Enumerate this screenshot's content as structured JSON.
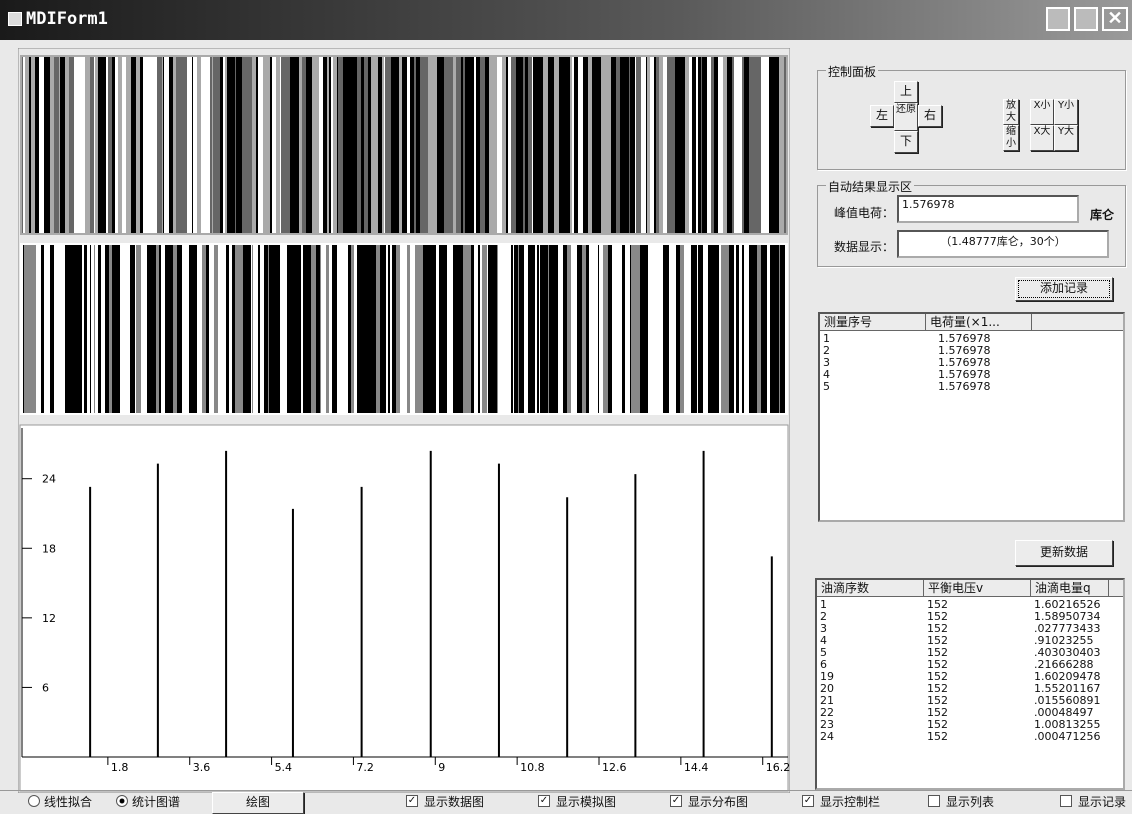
{
  "window": {
    "title": "MDIForm1"
  },
  "spectrum": {
    "xlim": [
      0,
      16.8
    ],
    "ylim": [
      0,
      28.2
    ],
    "xticks": [
      1.8,
      3.6,
      5.4,
      7.2,
      9,
      10.8,
      12.6,
      14.4,
      16.2
    ],
    "yticks": [
      6,
      12,
      18,
      24
    ],
    "peaks": {
      "x": [
        1.41,
        2.9,
        4.4,
        5.87,
        7.38,
        8.9,
        10.4,
        11.9,
        13.4,
        14.9,
        16.4
      ],
      "y": [
        23.3,
        25.3,
        26.4,
        21.4,
        23.3,
        26.4,
        25.3,
        22.4,
        24.4,
        26.4,
        17.3
      ]
    }
  },
  "control_panel": {
    "title": "控制面板",
    "up": "上",
    "left": "左",
    "restore": "还原",
    "right": "右",
    "down": "下",
    "zoom_in": "放大",
    "zoom_out": "缩小",
    "x_small": "X小",
    "y_small": "Y小",
    "x_large": "X大",
    "y_large": "Y大"
  },
  "results": {
    "title": "自动结果显示区",
    "peak_label": "峰值电荷：",
    "peak_value": "1.576978",
    "unit": "库仑",
    "data_label": "数据显示：",
    "data_value": "（1.48777库仑，30个）"
  },
  "add_button": "添加记录",
  "records": {
    "columns": [
      "测量序号",
      "电荷量(×1..."
    ],
    "rows": [
      [
        "1",
        "1.576978"
      ],
      [
        "2",
        "1.576978"
      ],
      [
        "3",
        "1.576978"
      ],
      [
        "4",
        "1.576978"
      ],
      [
        "5",
        "1.576978"
      ]
    ]
  },
  "update_button": "更新数据",
  "drops": {
    "columns": [
      "油滴序数",
      "平衡电压v",
      "油滴电量q"
    ],
    "rows": [
      [
        "1",
        "152",
        "1.60216526"
      ],
      [
        "2",
        "152",
        "1.58950734"
      ],
      [
        "3",
        "152",
        ".027773433"
      ],
      [
        "4",
        "152",
        ".91023255"
      ],
      [
        "5",
        "152",
        ".403030403"
      ],
      [
        "6",
        "152",
        ".21666288"
      ],
      [
        "19",
        "152",
        "1.60209478"
      ],
      [
        "20",
        "152",
        "1.55201167"
      ],
      [
        "21",
        "152",
        ".015560891"
      ],
      [
        "22",
        "152",
        ".00048497"
      ],
      [
        "23",
        "152",
        "1.00813255"
      ],
      [
        "24",
        "152",
        ".000471256"
      ]
    ]
  },
  "bottom": {
    "radios": [
      "线性拟合",
      "统计图谱"
    ],
    "selected_radio": 1,
    "draw_button": "绘图",
    "checks": [
      "显示数据图",
      "显示模拟图",
      "显示分布图",
      "显示控制栏",
      "显示列表",
      "显示记录"
    ],
    "checked": [
      true,
      true,
      true,
      true,
      false,
      false
    ]
  }
}
